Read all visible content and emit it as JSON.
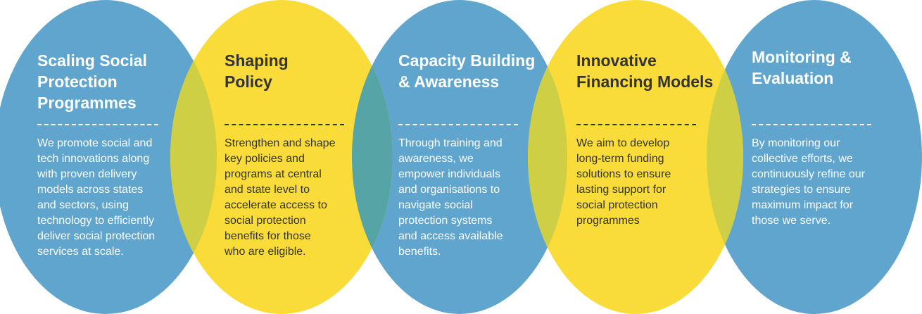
{
  "colors": {
    "blue": "#5fa5cd",
    "yellow": "#f9dc3a",
    "overlap_blue_yellow": "#cfcf45",
    "overlap_yellow_blue": "#56a4a5"
  },
  "panels": [
    {
      "title_lines": [
        "Scaling Social",
        "Protection",
        "Programmes"
      ],
      "body_lines": [
        "We promote  social and",
        "tech innovations along",
        "with proven delivery",
        "models across states",
        "and sectors, using",
        "technology to efficiently",
        "deliver social protection",
        "services at scale."
      ]
    },
    {
      "title_lines": [
        "Shaping",
        "Policy"
      ],
      "body_lines": [
        "Strengthen and shape",
        "key policies and",
        "programs at central",
        "and state level to",
        "accelerate access to",
        "social protection",
        "benefits for those",
        "who are eligible."
      ]
    },
    {
      "title_lines": [
        "Capacity Building",
        "& Awareness"
      ],
      "body_lines": [
        "Through training and",
        "awareness, we",
        "empower individuals",
        "and organisations to",
        "navigate social",
        "protection systems",
        "and access available",
        "benefits."
      ]
    },
    {
      "title_lines": [
        "Innovative",
        "Financing Models"
      ],
      "body_lines": [
        "We aim to develop",
        "long-term funding",
        "solutions to ensure",
        "lasting support for",
        "social protection",
        "programmes"
      ]
    },
    {
      "title_lines": [
        "Monitoring &",
        "Evaluation"
      ],
      "body_lines": [
        "By monitoring our",
        "collective efforts, we",
        "continuously refine our",
        "strategies to ensure",
        "maximum impact for",
        "those we serve."
      ]
    }
  ]
}
